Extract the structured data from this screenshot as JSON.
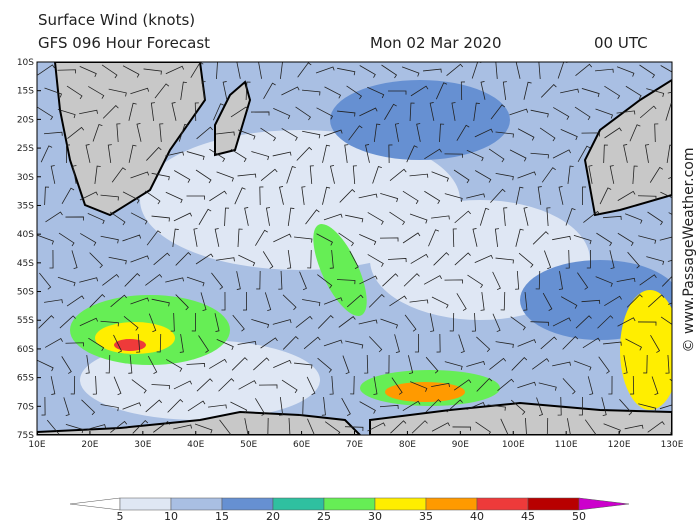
{
  "header": {
    "title": "Surface Wind (knots)",
    "subtitle": "GFS 096 Hour Forecast",
    "date": "Mon 02 Mar 2020",
    "time": "00 UTC"
  },
  "lat_labels": [
    "10S",
    "15S",
    "20S",
    "25S",
    "30S",
    "35S",
    "40S",
    "45S",
    "50S",
    "55S",
    "60S",
    "65S",
    "70S",
    "75S"
  ],
  "lon_labels": [
    "10E",
    "20E",
    "30E",
    "40E",
    "50E",
    "60E",
    "70E",
    "80E",
    "90E",
    "100E",
    "110E",
    "120E",
    "130E"
  ],
  "colorbar": {
    "levels": [
      5,
      10,
      15,
      20,
      25,
      30,
      35,
      40,
      45,
      50
    ],
    "colors": [
      "#ffffff",
      "#dfe7f4",
      "#a9bfe3",
      "#6690d2",
      "#2fc0a0",
      "#66ee55",
      "#ffee00",
      "#ff9a00",
      "#ee3a3a",
      "#b80000",
      "#cc00cc"
    ]
  },
  "credit": "© www.PassageWeather.com"
}
